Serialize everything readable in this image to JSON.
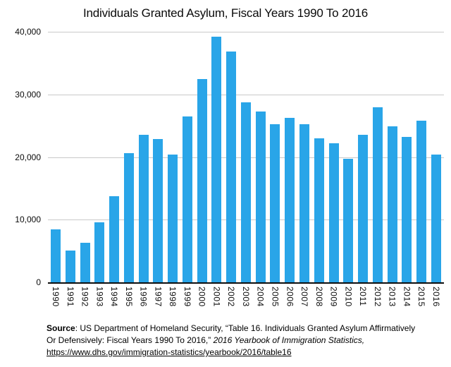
{
  "chart": {
    "title": "Individuals Granted Asylum, Fiscal Years 1990 To 2016"
  },
  "chart_data": {
    "type": "bar",
    "title": "Individuals Granted Asylum, Fiscal Years 1990 To 2016",
    "categories": [
      "1990",
      "1991",
      "1992",
      "1993",
      "1994",
      "1995",
      "1996",
      "1997",
      "1998",
      "1999",
      "2000",
      "2001",
      "2002",
      "2003",
      "2004",
      "2005",
      "2006",
      "2007",
      "2008",
      "2009",
      "2010",
      "2011",
      "2012",
      "2013",
      "2014",
      "2015",
      "2016"
    ],
    "values": [
      8472,
      5035,
      6310,
      9550,
      13800,
      20643,
      23500,
      22900,
      20440,
      26530,
      32400,
      39200,
      36894,
      28684,
      27321,
      25270,
      26300,
      25290,
      22950,
      22200,
      19700,
      23500,
      27900,
      24850,
      23200,
      25800,
      20400
    ],
    "xlabel": "",
    "ylabel": "",
    "ylim": [
      0,
      40000
    ],
    "yticks_top_to_bottom": [
      "40,000",
      "30,000",
      "20,000",
      "10,000",
      "0"
    ],
    "grid": true,
    "legend_position": "none",
    "bar_color": "#29A5E8"
  },
  "source": {
    "label": "Source",
    "line1": ": US Department of Homeland Security, “Table 16. Individuals Granted Asylum Affirmatively",
    "line2": "Or Defensively: Fiscal Years 1990 To 2016,” ",
    "line2_italic": "2016 Yearbook of Immigration Statistics,",
    "link": "https://www.dhs.gov/immigration-statistics/yearbook/2016/table16"
  }
}
